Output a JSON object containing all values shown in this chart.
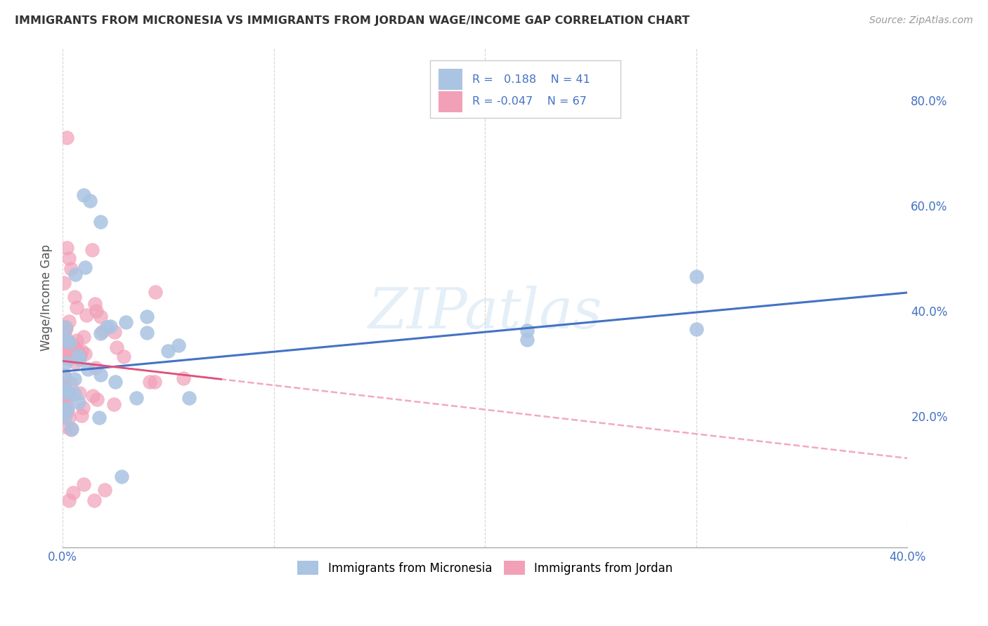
{
  "title": "IMMIGRANTS FROM MICRONESIA VS IMMIGRANTS FROM JORDAN WAGE/INCOME GAP CORRELATION CHART",
  "source": "Source: ZipAtlas.com",
  "ylabel": "Wage/Income Gap",
  "xlim": [
    0.0,
    0.4
  ],
  "ylim": [
    -0.05,
    0.9
  ],
  "xtick_positions": [
    0.0,
    0.1,
    0.2,
    0.3,
    0.4
  ],
  "xtick_labels": [
    "0.0%",
    "",
    "",
    "",
    "40.0%"
  ],
  "ytick_positions": [
    0.2,
    0.4,
    0.6,
    0.8
  ],
  "ytick_labels": [
    "20.0%",
    "40.0%",
    "60.0%",
    "80.0%"
  ],
  "color_micronesia": "#aac4e2",
  "color_jordan": "#f2a0b8",
  "R_micronesia": 0.188,
  "N_micronesia": 41,
  "R_jordan": -0.047,
  "N_jordan": 67,
  "watermark": "ZIPatlas",
  "background_color": "#ffffff",
  "grid_color": "#cccccc",
  "trend_micronesia_color": "#4472c4",
  "trend_jordan_color": "#f2a0b8",
  "trend_micro_y0": 0.285,
  "trend_micro_y1": 0.435,
  "trend_jordan_y0": 0.305,
  "trend_jordan_y1": 0.12,
  "title_color": "#333333",
  "source_color": "#999999",
  "axis_label_color": "#555555",
  "tick_color": "#4472c4",
  "legend_R_color": "#4472c4"
}
